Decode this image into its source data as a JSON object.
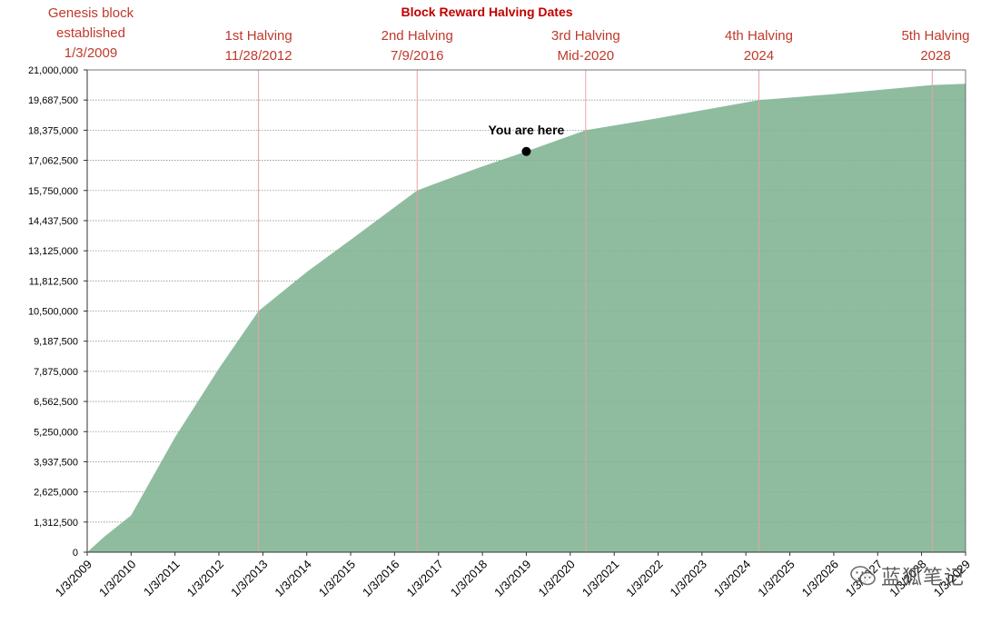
{
  "chart_data": {
    "type": "area",
    "title": "Block Reward Halving Dates",
    "ylim": [
      0,
      21000000
    ],
    "yticks": [
      0,
      1312500,
      2625000,
      3937500,
      5250000,
      6562500,
      7875000,
      9187500,
      10500000,
      11812500,
      13125000,
      14437500,
      15750000,
      17062500,
      18375000,
      19687500,
      21000000
    ],
    "ytick_labels": [
      "0",
      "1,312,500",
      "2,625,000",
      "3,937,500",
      "5,250,000",
      "6,562,500",
      "7,875,000",
      "9,187,500",
      "10,500,000",
      "11,812,500",
      "13,125,000",
      "14,437,500",
      "15,750,000",
      "17,062,500",
      "18,375,000",
      "19,687,500",
      "21,000,000"
    ],
    "xlim": [
      "2009-01-03",
      "2029-01-03"
    ],
    "xtick_dates": [
      "2009-01-03",
      "2010-01-03",
      "2011-01-03",
      "2012-01-03",
      "2013-01-03",
      "2014-01-03",
      "2015-01-03",
      "2016-01-03",
      "2017-01-03",
      "2018-01-03",
      "2019-01-03",
      "2020-01-03",
      "2021-01-03",
      "2022-01-03",
      "2023-01-03",
      "2024-01-03",
      "2025-01-03",
      "2026-01-03",
      "2027-01-03",
      "2028-01-03",
      "2029-01-03"
    ],
    "xtick_labels": [
      "1/3/2009",
      "1/3/2010",
      "1/3/2011",
      "1/3/2012",
      "1/3/2013",
      "1/3/2014",
      "1/3/2015",
      "1/3/2016",
      "1/3/2017",
      "1/3/2018",
      "1/3/2019",
      "1/3/2020",
      "1/3/2021",
      "1/3/2022",
      "1/3/2023",
      "1/3/2024",
      "1/3/2025",
      "1/3/2026",
      "1/3/2027",
      "1/3/2028",
      "1/3/2029"
    ],
    "series": [
      {
        "color": "#8fbc9f",
        "points": [
          {
            "x": "2009-01-03",
            "y": 0
          },
          {
            "x": "2009-06-01",
            "y": 700000
          },
          {
            "x": "2010-01-03",
            "y": 1600000
          },
          {
            "x": "2011-01-03",
            "y": 5000000
          },
          {
            "x": "2012-01-03",
            "y": 8000000
          },
          {
            "x": "2012-11-28",
            "y": 10500000
          },
          {
            "x": "2014-01-03",
            "y": 12200000
          },
          {
            "x": "2015-01-03",
            "y": 13600000
          },
          {
            "x": "2016-07-09",
            "y": 15750000
          },
          {
            "x": "2017-01-03",
            "y": 16100000
          },
          {
            "x": "2018-01-03",
            "y": 16800000
          },
          {
            "x": "2019-01-03",
            "y": 17450000
          },
          {
            "x": "2020-05-11",
            "y": 18375000
          },
          {
            "x": "2022-01-03",
            "y": 18900000
          },
          {
            "x": "2024-04-20",
            "y": 19687500
          },
          {
            "x": "2026-01-03",
            "y": 19950000
          },
          {
            "x": "2028-04-01",
            "y": 20343750
          },
          {
            "x": "2029-01-03",
            "y": 20400000
          }
        ]
      }
    ],
    "events": [
      {
        "date": "2009-01-03",
        "lines": [
          "Genesis block",
          "established",
          "1/3/2009"
        ]
      },
      {
        "date": "2012-11-28",
        "lines": [
          "1st Halving",
          "11/28/2012"
        ]
      },
      {
        "date": "2016-07-09",
        "lines": [
          "2nd Halving",
          "7/9/2016"
        ]
      },
      {
        "date": "2020-05-11",
        "lines": [
          "3rd Halving",
          "Mid-2020"
        ]
      },
      {
        "date": "2024-04-20",
        "lines": [
          "4th Halving",
          "2024"
        ]
      },
      {
        "date": "2028-04-01",
        "lines": [
          "5th Halving",
          "2028"
        ]
      }
    ],
    "annotation": {
      "label": "You are here",
      "x": "2019-01-03",
      "y": 17450000
    },
    "grid": true
  },
  "watermark": {
    "icon": "wechat-icon",
    "text": "蓝狐笔记"
  }
}
